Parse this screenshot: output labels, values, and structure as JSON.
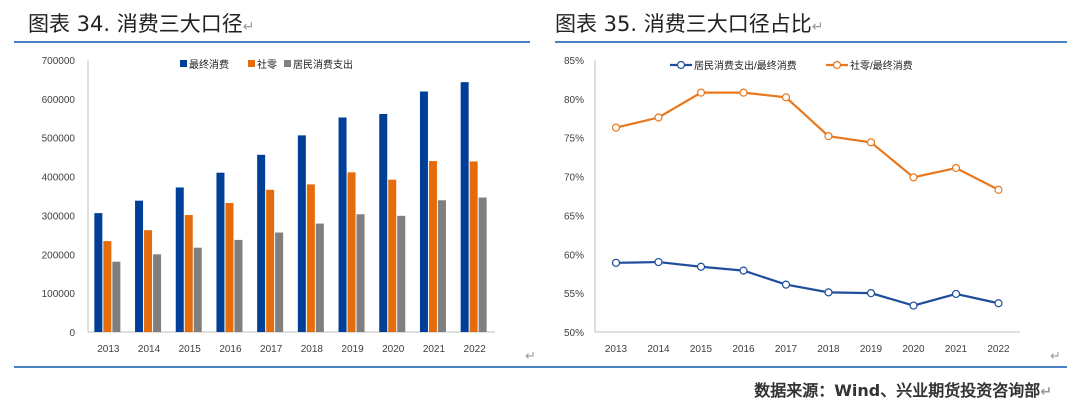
{
  "left_title": "图表 34. 消费三大口径",
  "right_title": "图表 35. 消费三大口径占比",
  "footer": "数据来源：Wind、兴业期货投资咨询部",
  "return_mark": "↵",
  "colors": {
    "blue": "#003f98",
    "orange": "#e46c0a",
    "gray": "#7f7f7f",
    "rule": "#4a7fc1"
  },
  "chart_data": [
    {
      "type": "bar",
      "title": "消费三大口径",
      "categories": [
        "2013",
        "2014",
        "2015",
        "2016",
        "2017",
        "2018",
        "2019",
        "2020",
        "2021",
        "2022"
      ],
      "series": [
        {
          "name": "最终消费",
          "color": "#003f98",
          "values": [
            306000,
            338000,
            372000,
            410000,
            456000,
            506000,
            552000,
            561000,
            619000,
            643000
          ]
        },
        {
          "name": "社零",
          "color": "#e46c0a",
          "values": [
            234000,
            262000,
            301000,
            332000,
            366000,
            380000,
            411000,
            392000,
            440000,
            439000
          ]
        },
        {
          "name": "居民消费支出",
          "color": "#7f7f7f",
          "values": [
            181000,
            200000,
            217000,
            237000,
            256000,
            279000,
            303000,
            299000,
            339000,
            346000
          ]
        }
      ],
      "ylim": [
        0,
        700000
      ],
      "yticks": [
        "0",
        "100000",
        "200000",
        "300000",
        "400000",
        "500000",
        "600000",
        "700000"
      ],
      "legend": "top-center",
      "grid": false
    },
    {
      "type": "line",
      "title": "消费三大口径占比",
      "categories": [
        "2013",
        "2014",
        "2015",
        "2016",
        "2017",
        "2018",
        "2019",
        "2020",
        "2021",
        "2022"
      ],
      "series": [
        {
          "name": "居民消费支出/最终消费",
          "color": "#1f4e9c",
          "values": [
            58.9,
            59.0,
            58.4,
            57.9,
            56.1,
            55.1,
            55.0,
            53.4,
            54.9,
            53.7
          ]
        },
        {
          "name": "社零/最终消费",
          "color": "#e8781e",
          "values": [
            76.3,
            77.6,
            80.8,
            80.8,
            80.2,
            75.2,
            74.4,
            69.9,
            71.1,
            68.3
          ]
        }
      ],
      "ylim": [
        50,
        85
      ],
      "yticks": [
        "50%",
        "55%",
        "60%",
        "65%",
        "70%",
        "75%",
        "80%",
        "85%"
      ],
      "legend": "top-center",
      "grid": false
    }
  ]
}
